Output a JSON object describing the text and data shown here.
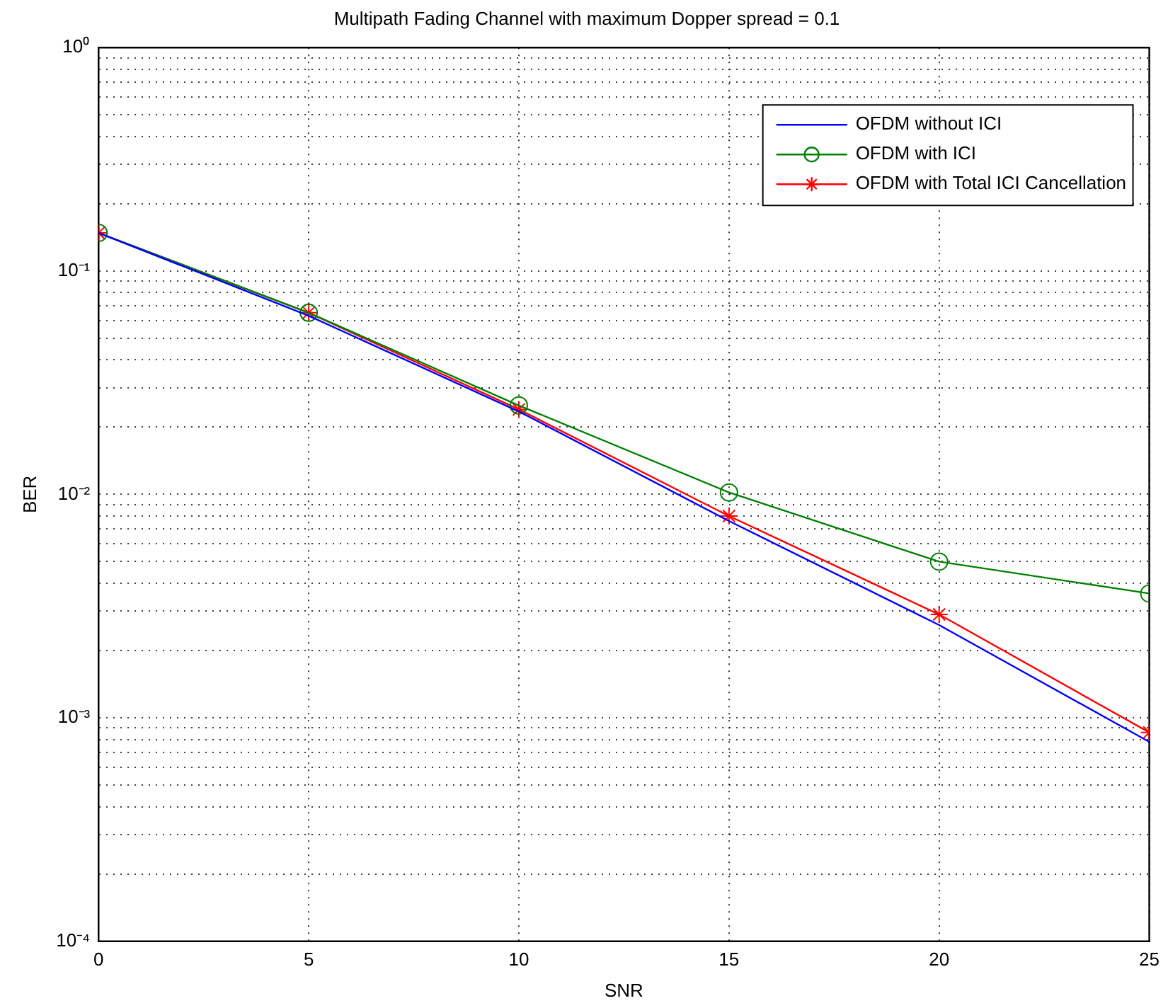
{
  "chart_data": {
    "type": "line",
    "title": "Multipath Fading Channel with maximum Dopper spread = 0.1",
    "xlabel": "SNR",
    "ylabel": "BER",
    "x": [
      0,
      5,
      10,
      15,
      20,
      25
    ],
    "series": [
      {
        "name": "OFDM without ICI",
        "color": "#0000ff",
        "marker": "none",
        "values": [
          0.148,
          0.063,
          0.0235,
          0.0076,
          0.0026,
          0.00078
        ]
      },
      {
        "name": "OFDM with ICI",
        "color": "#008000",
        "marker": "circle",
        "values": [
          0.148,
          0.065,
          0.025,
          0.0102,
          0.005,
          0.0036
        ]
      },
      {
        "name": "OFDM with Total ICI Cancellation",
        "color": "#ff0000",
        "marker": "cross",
        "values": [
          0.148,
          0.065,
          0.024,
          0.008,
          0.0029,
          0.00086
        ]
      }
    ],
    "log": "y",
    "xlim": [
      0,
      25
    ],
    "xticks": [
      0,
      5,
      10,
      15,
      20,
      25
    ],
    "ylim": [
      0.0001,
      1
    ],
    "yticks": [
      {
        "value": 0.0001,
        "label": "10⁻⁴"
      },
      {
        "value": 0.0002,
        "label": null
      },
      {
        "value": 0.0003,
        "label": null
      },
      {
        "value": 0.0004,
        "label": null
      },
      {
        "value": 0.0005,
        "label": null
      },
      {
        "value": 0.0006,
        "label": null
      },
      {
        "value": 0.0007,
        "label": null
      },
      {
        "value": 0.0008,
        "label": null
      },
      {
        "value": 0.0009,
        "label": null
      },
      {
        "value": 0.001,
        "label": "10⁻³"
      },
      {
        "value": 0.002,
        "label": null
      },
      {
        "value": 0.003,
        "label": null
      },
      {
        "value": 0.004,
        "label": null
      },
      {
        "value": 0.005,
        "label": null
      },
      {
        "value": 0.006,
        "label": null
      },
      {
        "value": 0.007,
        "label": null
      },
      {
        "value": 0.008,
        "label": null
      },
      {
        "value": 0.009,
        "label": null
      },
      {
        "value": 0.01,
        "label": "10⁻²"
      },
      {
        "value": 0.02,
        "label": null
      },
      {
        "value": 0.03,
        "label": null
      },
      {
        "value": 0.04,
        "label": null
      },
      {
        "value": 0.05,
        "label": null
      },
      {
        "value": 0.06,
        "label": null
      },
      {
        "value": 0.07,
        "label": null
      },
      {
        "value": 0.08,
        "label": null
      },
      {
        "value": 0.09,
        "label": null
      },
      {
        "value": 0.1,
        "label": "10⁻¹"
      },
      {
        "value": 0.2,
        "label": null
      },
      {
        "value": 0.3,
        "label": null
      },
      {
        "value": 0.4,
        "label": null
      },
      {
        "value": 0.5,
        "label": null
      },
      {
        "value": 0.6,
        "label": null
      },
      {
        "value": 0.7,
        "label": null
      },
      {
        "value": 0.8,
        "label": null
      },
      {
        "value": 0.9,
        "label": null
      },
      {
        "value": 1,
        "label": "10⁰"
      }
    ],
    "grid": true,
    "legend": "top right"
  }
}
